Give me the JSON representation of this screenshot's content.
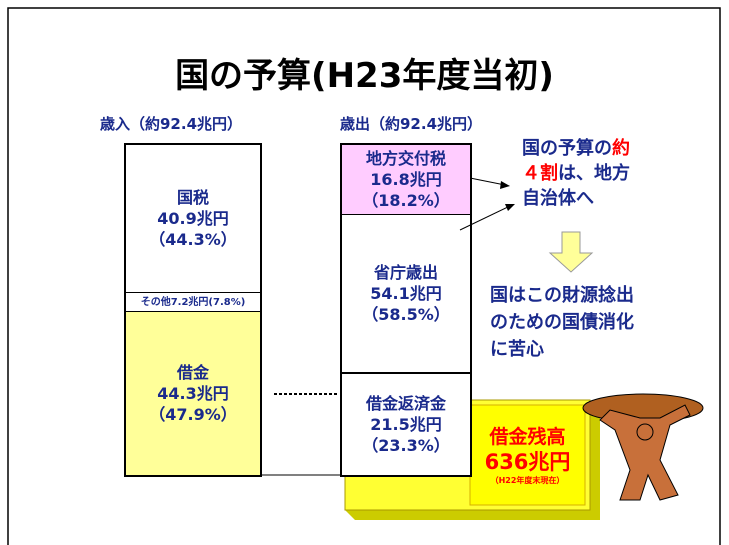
{
  "title": "国の予算(H23年度当初)",
  "revenue": {
    "header": "歳入（約92.4兆円）",
    "segments": [
      {
        "label": "国税",
        "amount": "40.9兆円",
        "share": "（44.3%）"
      },
      {
        "label": "その他7.2兆円",
        "share": "(7.8%)"
      },
      {
        "label": "借金",
        "amount": "44.3兆円",
        "share": "（47.9%）"
      }
    ]
  },
  "expenditure": {
    "header": "歳出（約92.4兆円）",
    "segments": [
      {
        "label": "地方交付税",
        "amount": "16.8兆円",
        "share": "（18.2%）"
      },
      {
        "label": "省庁歳出",
        "amount": "54.1兆円",
        "share": "（58.5%）"
      },
      {
        "label": "借金返済金",
        "amount": "21.5兆円",
        "share": "（23.3%）"
      }
    ]
  },
  "note": {
    "parts": [
      "国の予算の",
      "約",
      "４割",
      "は、地方",
      "自治体へ"
    ]
  },
  "burden": {
    "lines": [
      "国はこの財源捻出",
      "のための国債消化",
      "に苦心"
    ]
  },
  "debt": {
    "label": "借金残高",
    "amount": "636兆円",
    "date": "（H22年度末現在）"
  }
}
